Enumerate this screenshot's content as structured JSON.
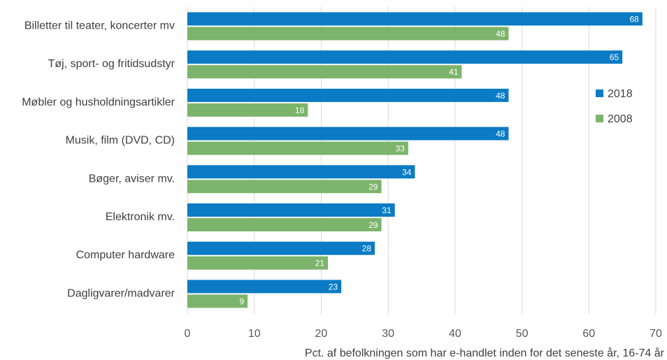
{
  "chart_data": {
    "type": "bar",
    "orientation": "horizontal",
    "categories": [
      "Billetter til teater, koncerter mv",
      "Tøj, sport- og fritidsudstyr",
      "Møbler og husholdningsartikler",
      "Musik, film (DVD, CD)",
      "Bøger, aviser mv.",
      "Elektronik mv.",
      "Computer hardware",
      "Dagligvarer/madvarer"
    ],
    "series": [
      {
        "name": "2018",
        "color": "#0a7bc4",
        "values": [
          68,
          65,
          48,
          48,
          34,
          31,
          28,
          23
        ]
      },
      {
        "name": "2008",
        "color": "#7cb46b",
        "values": [
          48,
          41,
          18,
          33,
          29,
          29,
          21,
          9
        ]
      }
    ],
    "xlabel": "Pct. af befolkningen som har e-handlet inden for det seneste år, 16-74 år",
    "xlim": [
      0,
      70
    ],
    "xticks": [
      0,
      10,
      20,
      30,
      40,
      50,
      60,
      70
    ],
    "grid": true,
    "legend": "right",
    "data_labels": true
  }
}
